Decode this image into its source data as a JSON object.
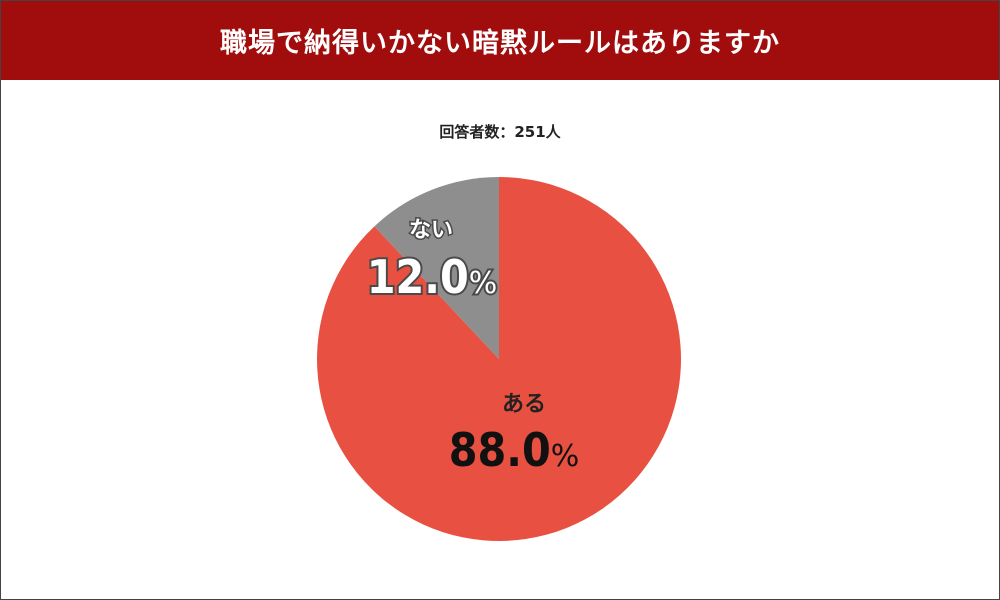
{
  "header": {
    "title": "職場で納得いかない暗黙ルールはありますか"
  },
  "respondents": "回答者数：251人",
  "colors": {
    "header_bg": "#a10c0c",
    "slice_yes": "#e85041",
    "slice_no": "#8e8e8e"
  },
  "chart_data": {
    "type": "pie",
    "categories": [
      "ある",
      "ない"
    ],
    "values": [
      88.0,
      12.0
    ],
    "value_texts": [
      "88.0",
      "12.0"
    ],
    "unit": "%",
    "title": "職場で納得いかない暗黙ルールはありますか",
    "start_angle": "12 o'clock",
    "direction": "clockwise"
  }
}
